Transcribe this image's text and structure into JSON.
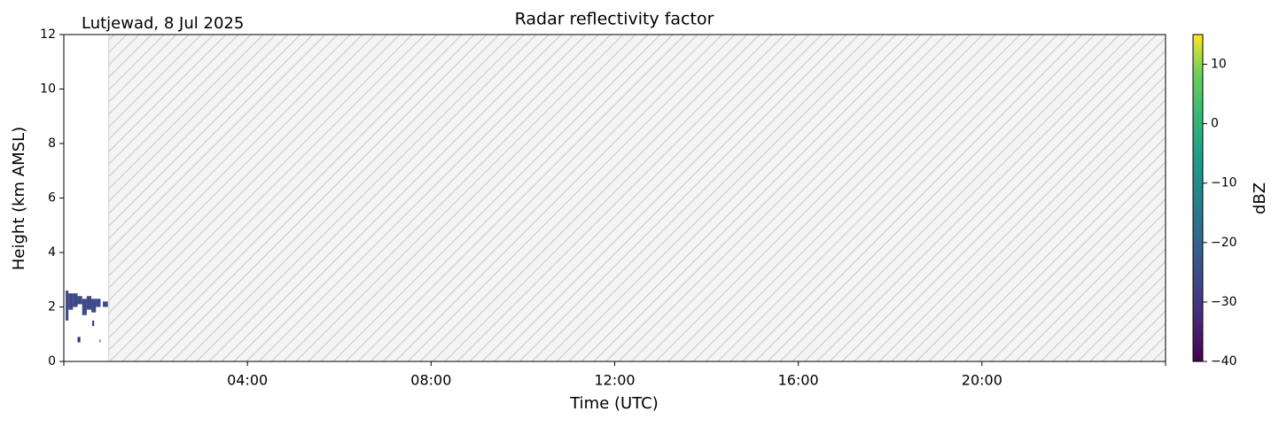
{
  "chart_data": {
    "type": "heatmap",
    "title": "Radar reflectivity factor",
    "subtitle": "Lutjewad, 8 Jul 2025",
    "x_label": "Time (UTC)",
    "y_label": "Height (km AMSL)",
    "xlim": [
      0,
      24
    ],
    "xticks": [
      {
        "value": 4,
        "label": "04:00"
      },
      {
        "value": 8,
        "label": "08:00"
      },
      {
        "value": 12,
        "label": "12:00"
      },
      {
        "value": 16,
        "label": "16:00"
      },
      {
        "value": 20,
        "label": "20:00"
      }
    ],
    "ylim": [
      0,
      12
    ],
    "yticks": [
      0,
      2,
      4,
      6,
      8,
      10,
      12
    ],
    "missing_range": [
      0.98,
      24
    ],
    "cells": [
      {
        "t0": 0.04,
        "t1": 0.1,
        "h0": 1.5,
        "h1": 2.6,
        "dbz": -24
      },
      {
        "t0": 0.1,
        "t1": 0.2,
        "h0": 1.9,
        "h1": 2.5,
        "dbz": -26
      },
      {
        "t0": 0.2,
        "t1": 0.3,
        "h0": 2.0,
        "h1": 2.5,
        "dbz": -25
      },
      {
        "t0": 0.3,
        "t1": 0.4,
        "h0": 2.1,
        "h1": 2.4,
        "dbz": -27
      },
      {
        "t0": 0.4,
        "t1": 0.5,
        "h0": 1.7,
        "h1": 2.3,
        "dbz": -23
      },
      {
        "t0": 0.5,
        "t1": 0.6,
        "h0": 1.9,
        "h1": 2.4,
        "dbz": -25
      },
      {
        "t0": 0.6,
        "t1": 0.7,
        "h0": 1.8,
        "h1": 2.3,
        "dbz": -26
      },
      {
        "t0": 0.7,
        "t1": 0.8,
        "h0": 2.0,
        "h1": 2.3,
        "dbz": -24
      },
      {
        "t0": 0.85,
        "t1": 0.96,
        "h0": 2.0,
        "h1": 2.2,
        "dbz": -25
      },
      {
        "t0": 0.3,
        "t1": 0.36,
        "h0": 0.7,
        "h1": 0.9,
        "dbz": -35
      },
      {
        "t0": 0.62,
        "t1": 0.66,
        "h0": 1.3,
        "h1": 1.5,
        "dbz": -33
      },
      {
        "t0": 0.78,
        "t1": 0.8,
        "h0": 0.7,
        "h1": 0.8,
        "dbz": -32
      }
    ],
    "colorbar": {
      "label": "dBZ",
      "colormap": "viridis",
      "lim": [
        -40,
        15
      ],
      "ticks": [
        {
          "value": -40,
          "label": "−40"
        },
        {
          "value": -30,
          "label": "−30"
        },
        {
          "value": -20,
          "label": "−20"
        },
        {
          "value": -10,
          "label": "−10"
        },
        0,
        10
      ]
    }
  }
}
